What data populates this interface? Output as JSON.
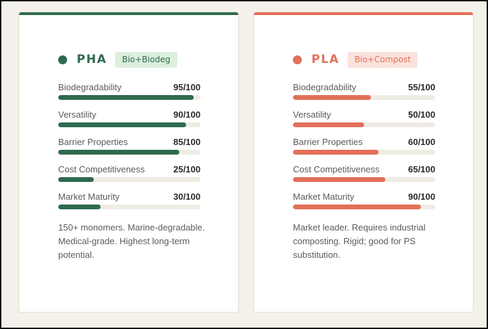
{
  "colors": {
    "pha_accent": "#2e6a4f",
    "pla_accent": "#e2705a",
    "background": "#f4f1ea"
  },
  "cards": [
    {
      "name": "PHA",
      "badge": "Bio+Biodeg",
      "metrics": [
        {
          "label": "Biodegradability",
          "value_text": "95/100",
          "value": 95
        },
        {
          "label": "Versatility",
          "value_text": "90/100",
          "value": 90
        },
        {
          "label": "Barrier Properties",
          "value_text": "85/100",
          "value": 85
        },
        {
          "label": "Cost Competitiveness",
          "value_text": "25/100",
          "value": 25
        },
        {
          "label": "Market Maturity",
          "value_text": "30/100",
          "value": 30
        }
      ],
      "description": "150+ monomers. Marine-degradable. Medical-grade. Highest long-term potential."
    },
    {
      "name": "PLA",
      "badge": "Bio+Compost",
      "metrics": [
        {
          "label": "Biodegradability",
          "value_text": "55/100",
          "value": 55
        },
        {
          "label": "Versatility",
          "value_text": "50/100",
          "value": 50
        },
        {
          "label": "Barrier Properties",
          "value_text": "60/100",
          "value": 60
        },
        {
          "label": "Cost Competitiveness",
          "value_text": "65/100",
          "value": 65
        },
        {
          "label": "Market Maturity",
          "value_text": "90/100",
          "value": 90
        }
      ],
      "description": "Market leader. Requires industrial composting. Rigid; good for PS substitution."
    }
  ]
}
